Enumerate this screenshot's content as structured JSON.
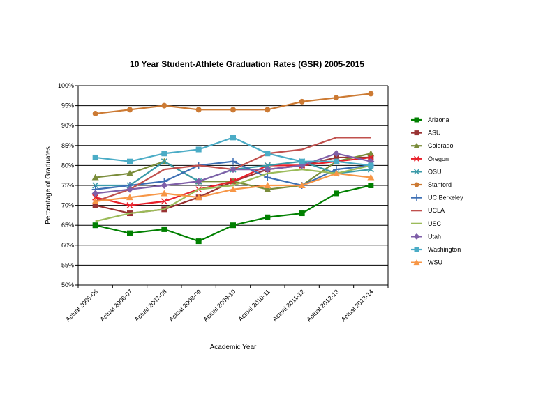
{
  "chart_data": {
    "type": "line",
    "title": "10 Year Student-Athlete Graduation Rates (GSR) 2005-2015",
    "xlabel": "Academic Year",
    "ylabel": "Percentage of Graduates",
    "ylim": [
      50,
      100
    ],
    "y_ticks": [
      "50%",
      "55%",
      "60%",
      "65%",
      "70%",
      "75%",
      "80%",
      "85%",
      "90%",
      "95%",
      "100%"
    ],
    "grid": "horizontal",
    "legend_position": "right",
    "categories": [
      "Actual 2005-06",
      "Actual 2006-07",
      "Actual 2007-08",
      "Actual 2008-09",
      "Actual 2009-10",
      "Actual 2010-11",
      "Actual 2011-12",
      "Actual 2012-13",
      "Actual 2013-14"
    ],
    "series": [
      {
        "name": "Arizona",
        "color": "#008000",
        "marker": "square",
        "values": [
          65,
          63,
          64,
          61,
          65,
          67,
          68,
          73,
          75
        ]
      },
      {
        "name": "ASU",
        "color": "#993333",
        "marker": "square",
        "values": [
          70,
          68,
          69,
          72,
          76,
          79,
          80,
          82,
          82
        ]
      },
      {
        "name": "Colorado",
        "color": "#7a8c3a",
        "marker": "triangle",
        "values": [
          77,
          78,
          81,
          76,
          76,
          74,
          75,
          81,
          83
        ]
      },
      {
        "name": "Oregon",
        "color": "#e8202a",
        "marker": "x",
        "values": [
          72,
          70,
          71,
          74,
          76,
          80,
          80,
          81,
          82
        ]
      },
      {
        "name": "OSU",
        "color": "#3a9aa8",
        "marker": "x",
        "values": [
          75,
          75,
          81,
          76,
          79,
          80,
          81,
          78,
          79
        ]
      },
      {
        "name": "Stanford",
        "color": "#cc7a33",
        "marker": "circle",
        "values": [
          93,
          94,
          95,
          94,
          94,
          94,
          96,
          97,
          98
        ]
      },
      {
        "name": "UC Berkeley",
        "color": "#3d6fb4",
        "marker": "plus",
        "values": [
          74,
          75,
          76,
          80,
          81,
          77,
          75,
          79,
          80
        ]
      },
      {
        "name": "UCLA",
        "color": "#c0504d",
        "marker": "none",
        "values": [
          71,
          74,
          79,
          80,
          79,
          83,
          84,
          87,
          87
        ]
      },
      {
        "name": "USC",
        "color": "#9bbb59",
        "marker": "none",
        "values": [
          66,
          68,
          69,
          74,
          75,
          78,
          79,
          78,
          80
        ]
      },
      {
        "name": "Utah",
        "color": "#7f5fa8",
        "marker": "diamond",
        "values": [
          73,
          74,
          75,
          76,
          79,
          79,
          80,
          83,
          81
        ]
      },
      {
        "name": "Washington",
        "color": "#4bacc6",
        "marker": "square",
        "values": [
          82,
          81,
          83,
          84,
          87,
          83,
          81,
          81,
          80
        ]
      },
      {
        "name": "WSU",
        "color": "#f79646",
        "marker": "triangle",
        "values": [
          71,
          72,
          73,
          72,
          74,
          75,
          75,
          78,
          77
        ]
      }
    ]
  }
}
